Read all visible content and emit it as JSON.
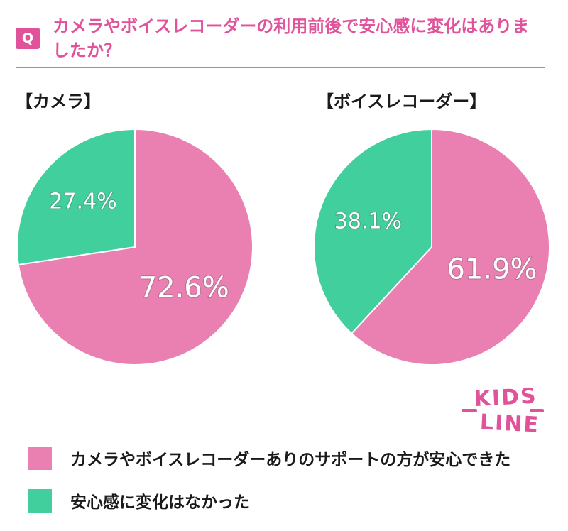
{
  "question": {
    "badge": "Q",
    "text": "カメラやボイスレコーダーの利用前後で安心感に変化はありましたか？"
  },
  "colors": {
    "pink": "#ea80b1",
    "green": "#41cf9d",
    "accent": "#e0529a"
  },
  "logo": {
    "text": "KIDS LINE"
  },
  "legend": [
    {
      "label": "カメラやボイスレコーダーありのサポートの方が安心できた",
      "color": "#ea80b1"
    },
    {
      "label": "安心感に変化はなかった",
      "color": "#41cf9d"
    }
  ],
  "chart_data": [
    {
      "type": "pie",
      "title": "【カメラ】",
      "categories": [
        "カメラやボイスレコーダーありのサポートの方が安心できた",
        "安心感に変化はなかった"
      ],
      "values": [
        72.6,
        27.4
      ],
      "labels": [
        "72.6%",
        "27.4%"
      ]
    },
    {
      "type": "pie",
      "title": "【ボイスレコーダー】",
      "categories": [
        "カメラやボイスレコーダーありのサポートの方が安心できた",
        "安心感に変化はなかった"
      ],
      "values": [
        61.9,
        38.1
      ],
      "labels": [
        "61.9%",
        "38.1%"
      ]
    }
  ]
}
